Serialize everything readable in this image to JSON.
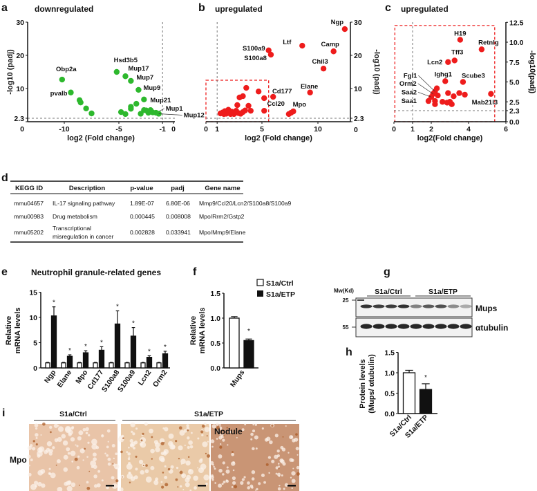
{
  "panels": {
    "a": "a",
    "b": "b",
    "c": "c",
    "d": "d",
    "e": "e",
    "f": "f",
    "g": "g",
    "h": "h",
    "i": "i"
  },
  "colors": {
    "down": "#2db82d",
    "up": "#ee1c1c",
    "box": "#ee1c1c",
    "dash": "#777777"
  },
  "chart_data": [
    {
      "type": "scatter",
      "title": "downregulated",
      "xlabel": "log2 (Fold change)",
      "ylabel": "-log10 (padj)",
      "xticks": [
        "-10",
        "-5",
        "-1",
        "0"
      ],
      "yticks": [
        "0",
        "2.3",
        "10",
        "20",
        "30"
      ],
      "xlim": [
        -11.5,
        0
      ],
      "ylim": [
        0,
        30
      ],
      "thresholds": {
        "x": -1,
        "y": 2.3
      },
      "points": [
        {
          "x": -10.2,
          "y": 12.7,
          "label": "Obp2a"
        },
        {
          "x": -9.4,
          "y": 8.8,
          "label": "pvalb"
        },
        {
          "x": -8.6,
          "y": 6.5
        },
        {
          "x": -8.5,
          "y": 5.8
        },
        {
          "x": -8.0,
          "y": 4.0
        },
        {
          "x": -7.5,
          "y": 2.5
        },
        {
          "x": -5.2,
          "y": 15.0,
          "label": "Hsd3b5"
        },
        {
          "x": -4.4,
          "y": 13.7,
          "label": "Mup17"
        },
        {
          "x": -3.9,
          "y": 12.3,
          "label": "Mup7"
        },
        {
          "x": -3.2,
          "y": 9.6,
          "label": "Mup9"
        },
        {
          "x": -2.7,
          "y": 6.7,
          "label": "Mup21"
        },
        {
          "x": -3.4,
          "y": 5.4
        },
        {
          "x": -3.9,
          "y": 4.5
        },
        {
          "x": -3.9,
          "y": 3.9
        },
        {
          "x": -4.8,
          "y": 2.9
        },
        {
          "x": -4.4,
          "y": 2.3
        },
        {
          "x": -3.0,
          "y": 2.4
        },
        {
          "x": -2.7,
          "y": 3.5
        },
        {
          "x": -2.5,
          "y": 3.4
        },
        {
          "x": -2.3,
          "y": 2.7
        },
        {
          "x": -2.1,
          "y": 3.5
        },
        {
          "x": -1.9,
          "y": 2.8
        },
        {
          "x": -1.6,
          "y": 2.7,
          "label": "Mup1"
        },
        {
          "x": -1.35,
          "y": 2.4,
          "label": "Mup12"
        }
      ]
    },
    {
      "type": "scatter",
      "title": "upregulated",
      "xlabel": "log2 (Fold change)",
      "ylabel": "-log10 (padj)",
      "xticks": [
        "0",
        "1",
        "5",
        "10"
      ],
      "yticks": [
        "0",
        "2.3",
        "10",
        "20",
        "30"
      ],
      "xlim": [
        0,
        12.9
      ],
      "ylim": [
        0,
        30
      ],
      "thresholds": {
        "x": 1,
        "y": 2.3
      },
      "zoom_box": {
        "x": [
          0,
          5.6
        ],
        "y": [
          0,
          12.5
        ]
      },
      "points": [
        {
          "x": 12.4,
          "y": 27.9,
          "label": "Ngp"
        },
        {
          "x": 11.4,
          "y": 21.2,
          "label": "Camp"
        },
        {
          "x": 8.6,
          "y": 22.9,
          "label": "Ltf"
        },
        {
          "x": 5.6,
          "y": 21.5,
          "label": "S100a9"
        },
        {
          "x": 5.8,
          "y": 20.2,
          "label": "S100a8"
        },
        {
          "x": 10.5,
          "y": 16.0,
          "label": "Chil3"
        },
        {
          "x": 9.3,
          "y": 8.8,
          "label": "Elane"
        },
        {
          "x": 6.0,
          "y": 7.5,
          "label": "Cd177"
        },
        {
          "x": 5.2,
          "y": 3.3,
          "label": "Ccl20"
        },
        {
          "x": 7.8,
          "y": 3.1,
          "label": "Mpo"
        },
        {
          "x": 7.6,
          "y": 2.7
        },
        {
          "x": 7.4,
          "y": 2.3
        },
        {
          "x": 3.6,
          "y": 10.2
        },
        {
          "x": 4.7,
          "y": 9.1
        },
        {
          "x": 3.3,
          "y": 7.7
        },
        {
          "x": 3.0,
          "y": 7.3
        },
        {
          "x": 5.2,
          "y": 7.1
        },
        {
          "x": 2.8,
          "y": 5.0
        },
        {
          "x": 3.8,
          "y": 4.8
        },
        {
          "x": 4.0,
          "y": 3.3
        },
        {
          "x": 1.3,
          "y": 2.5
        },
        {
          "x": 1.5,
          "y": 2.8
        },
        {
          "x": 1.7,
          "y": 3.2
        },
        {
          "x": 1.8,
          "y": 2.4
        },
        {
          "x": 2.0,
          "y": 3.6
        },
        {
          "x": 2.1,
          "y": 2.6
        },
        {
          "x": 2.3,
          "y": 3.0
        },
        {
          "x": 2.5,
          "y": 2.3
        },
        {
          "x": 2.7,
          "y": 3.3
        },
        {
          "x": 2.9,
          "y": 2.6
        },
        {
          "x": 3.1,
          "y": 2.4
        },
        {
          "x": 3.3,
          "y": 2.9
        },
        {
          "x": 3.5,
          "y": 3.4
        },
        {
          "x": 1.6,
          "y": 2.3
        },
        {
          "x": 2.2,
          "y": 2.3
        },
        {
          "x": 2.6,
          "y": 2.9
        }
      ]
    },
    {
      "type": "scatter",
      "title": "upregulated",
      "xlabel": "log2(Fold change)",
      "ylabel": "-log10(padj)",
      "xticks": [
        "0",
        "1",
        "2",
        "4",
        "6"
      ],
      "yticks": [
        "0.0",
        "2.3",
        "2.5",
        "5.0",
        "7.5",
        "10.0",
        "12.5"
      ],
      "xlim": [
        0,
        6
      ],
      "ylim": [
        0,
        12.5
      ],
      "thresholds": {
        "x": 1,
        "y": 2.3
      },
      "zoom_box": {
        "x": [
          0.05,
          5.4
        ],
        "y": [
          0,
          12.1
        ]
      },
      "points": [
        {
          "x": 3.55,
          "y": 10.3,
          "label": "H19"
        },
        {
          "x": 4.7,
          "y": 9.1,
          "label": "Retnlg"
        },
        {
          "x": 3.25,
          "y": 7.7,
          "label": "Tff3"
        },
        {
          "x": 2.9,
          "y": 7.5,
          "label": "Lcn2"
        },
        {
          "x": 2.75,
          "y": 5.1,
          "label": "Ighg1"
        },
        {
          "x": 3.7,
          "y": 5.0,
          "label": "Scube3"
        },
        {
          "x": 5.2,
          "y": 3.5,
          "label": "Mab21l3"
        },
        {
          "x": 2.2,
          "y": 3.8,
          "label": "Fgl1"
        },
        {
          "x": 2.1,
          "y": 3.5,
          "label": "Orm2"
        },
        {
          "x": 2.0,
          "y": 3.1,
          "label": "Saa2"
        },
        {
          "x": 1.85,
          "y": 2.6,
          "label": "Saa1"
        },
        {
          "x": 2.3,
          "y": 4.2
        },
        {
          "x": 2.35,
          "y": 3.3
        },
        {
          "x": 2.2,
          "y": 2.6
        },
        {
          "x": 2.2,
          "y": 2.2
        },
        {
          "x": 2.6,
          "y": 2.5
        },
        {
          "x": 2.85,
          "y": 2.4
        },
        {
          "x": 3.0,
          "y": 2.5
        },
        {
          "x": 3.1,
          "y": 2.2
        },
        {
          "x": 2.9,
          "y": 3.6
        },
        {
          "x": 3.2,
          "y": 3.2
        },
        {
          "x": 3.5,
          "y": 3.6
        },
        {
          "x": 3.8,
          "y": 3.4
        }
      ]
    },
    {
      "type": "bar",
      "title": "Neutrophil granule-related genes",
      "ylabel": [
        "Relative",
        "mRNA levels"
      ],
      "yticks": [
        "0",
        "5",
        "10",
        "15"
      ],
      "ylim": [
        0,
        15
      ],
      "categories": [
        "Ngp",
        "Elane",
        "Mpo",
        "Cd177",
        "S100a8",
        "S100a9",
        "Lcn2",
        "Orm2"
      ],
      "series": [
        {
          "name": "S1a/Ctrl",
          "values": [
            1,
            1,
            1,
            1,
            1,
            1,
            1,
            1
          ],
          "errors": [
            0.1,
            0.1,
            0.1,
            0.1,
            0.1,
            0.1,
            0.1,
            0.1
          ]
        },
        {
          "name": "S1a/ETP",
          "values": [
            10.3,
            2.3,
            3.0,
            3.5,
            8.7,
            6.3,
            2.1,
            2.8
          ],
          "errors": [
            1.8,
            0.3,
            0.4,
            0.7,
            2.6,
            1.7,
            0.3,
            0.5
          ]
        }
      ],
      "significance": [
        "*",
        "*",
        "*",
        "*",
        "*",
        "*",
        "*",
        "*"
      ]
    },
    {
      "type": "bar",
      "ylabel": [
        "Relative",
        "mRNA levels"
      ],
      "yticks": [
        "0.0",
        "0.5",
        "1.0",
        "1.5"
      ],
      "ylim": [
        0,
        1.5
      ],
      "categories": [
        "Mups"
      ],
      "series": [
        {
          "name": "S1a/Ctrl",
          "values": [
            1.0
          ],
          "errors": [
            0.03
          ]
        },
        {
          "name": "S1a/ETP",
          "values": [
            0.55
          ],
          "errors": [
            0.03
          ]
        }
      ],
      "significance": [
        "*"
      ],
      "legend": [
        "S1a/Ctrl",
        "S1a/ETP"
      ]
    },
    {
      "type": "bar",
      "ylabel": [
        "Protein levels",
        "(Mups/ αtubulin)"
      ],
      "yticks": [
        "0.0",
        "0.5",
        "1.0",
        "1.5"
      ],
      "ylim": [
        0,
        1.5
      ],
      "categories": [
        "S1a/Ctrl",
        "S1a/ETP"
      ],
      "values": [
        1.0,
        0.59
      ],
      "errors": [
        0.06,
        0.14
      ],
      "significance": [
        "",
        "*"
      ]
    }
  ],
  "table": {
    "headers": [
      "KEGG ID",
      "Description",
      "p-value",
      "padj",
      "Gene name"
    ],
    "rows": [
      {
        "id": "mmu04657",
        "desc": [
          "IL-17 signaling pathway"
        ],
        "p": "1.89E-07",
        "padj": "6.80E-06",
        "genes": "Mmp9/Ccl20/Lcn2/S100a8/S100a9"
      },
      {
        "id": "mmu00983",
        "desc": [
          "Drug metabolism"
        ],
        "p": "0.000445",
        "padj": "0.008008",
        "genes": "Mpo/Rrm2/Gstp2"
      },
      {
        "id": "mmu05202",
        "desc": [
          "Transcriptional",
          "misregulation in cancer"
        ],
        "p": "0.002828",
        "padj": "0.033941",
        "genes": "Mpo/Mmp9/Elane"
      }
    ]
  },
  "blot": {
    "mw_label": "Mw(Kd)",
    "mw_markers": [
      "25",
      "55"
    ],
    "groups": [
      "S1a/Ctrl",
      "S1a/ETP"
    ],
    "rows": [
      {
        "name": "Mups",
        "intensity": [
          0.95,
          0.9,
          0.9,
          0.95,
          0.55,
          0.75,
          0.8,
          0.5,
          0.35
        ]
      },
      {
        "name": "αtubulin",
        "intensity": [
          1,
          1,
          1,
          1,
          1,
          1,
          1,
          1,
          1
        ]
      }
    ]
  },
  "histology": {
    "groups": [
      "S1a/Ctrl",
      "S1a/ETP"
    ],
    "row_label": "Mpo",
    "images": [
      {
        "caption": "",
        "tone": "#e9c4a8"
      },
      {
        "caption": "",
        "tone": "#eacaa8"
      },
      {
        "caption": "Nodule",
        "tone": "#c99575"
      }
    ]
  }
}
